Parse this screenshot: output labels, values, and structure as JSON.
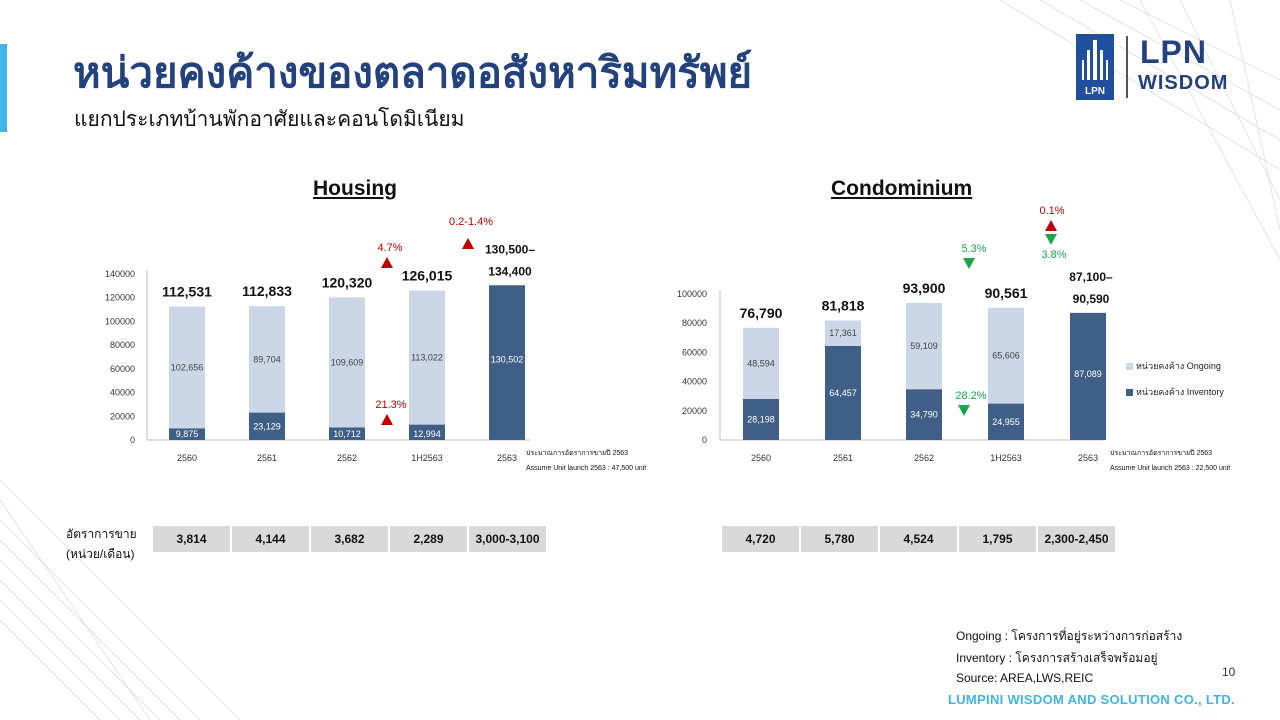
{
  "page": {
    "title": "หน่วยคงค้างของตลาดอสังหาริมทรัพย์",
    "subtitle": "แยกประเภทบ้านพักอาศัยและคอนโดมิเนียม",
    "logo_top": "LPN",
    "logo_bottom": "WISDOM",
    "logo_mark": "LPN",
    "page_number": "10",
    "company": "LUMPINI WISDOM AND SOLUTION CO., LTD.",
    "notes": [
      "Ongoing :  โครงการที่อยู่ระหว่างการก่อสร้าง",
      "Inventory : โครงการสร้างเสร็จพร้อมอยู่",
      "Source: AREA,LWS,REIC"
    ],
    "sales_label": [
      "อัตราการขาย",
      "(หน่วย/เดือน)"
    ],
    "colors": {
      "ongoing": "#cbd7e6",
      "inventory": "#3f5f86",
      "title": "#23417c",
      "up": "#c00000",
      "down": "#1aa64a",
      "accent": "#3fb4e6"
    }
  },
  "chart_data": [
    {
      "type": "bar",
      "stacked": true,
      "title": "Housing",
      "categories": [
        "2560",
        "2561",
        "2562",
        "1H2563",
        "2563"
      ],
      "yticks": [
        "0",
        "20000",
        "40000",
        "60000",
        "80000",
        "100000",
        "120000",
        "140000"
      ],
      "ylim": [
        0,
        140000
      ],
      "series": [
        {
          "name": "หน่วยคงค้าง Inventory",
          "values": [
            9875,
            23129,
            10712,
            12994,
            130502
          ],
          "labels": [
            "9,875",
            "23,129",
            "10,712",
            "12,994",
            "130,502"
          ]
        },
        {
          "name": "หน่วยคงค้าง Ongoing",
          "values": [
            102656,
            89704,
            109609,
            113022,
            null
          ],
          "labels": [
            "102,656",
            "89,704",
            "109,609",
            "113,022",
            ""
          ]
        }
      ],
      "totals": [
        "112,531",
        "112,833",
        "120,320",
        "126,015",
        "130,500–\n134,400"
      ],
      "annotations": [
        {
          "text": "4.7%",
          "direction": "up",
          "category": "2562",
          "role": "total"
        },
        {
          "text": "0.2-1.4%",
          "direction": "up",
          "category": "1H2563",
          "role": "total"
        },
        {
          "text": "21.3%",
          "direction": "up",
          "category": "2562",
          "role": "inventory"
        }
      ],
      "side_note": [
        "ประมาณการอัตราการขายปี 2563",
        "Assume Unit launch 2563 : 47,500 unit"
      ],
      "sales_rate": [
        "3,814",
        "4,144",
        "3,682",
        "2,289",
        "3,000-3,100"
      ]
    },
    {
      "type": "bar",
      "stacked": true,
      "title": "Condominium",
      "categories": [
        "2560",
        "2561",
        "2562",
        "1H2563",
        "2563"
      ],
      "yticks": [
        "0",
        "20000",
        "40000",
        "60000",
        "80000",
        "100000"
      ],
      "ylim": [
        0,
        100000
      ],
      "series": [
        {
          "name": "หน่วยคงค้าง Inventory",
          "values": [
            28198,
            64457,
            34790,
            24955,
            87089
          ],
          "labels": [
            "28,198",
            "64,457",
            "34,790",
            "24,955",
            "87,089"
          ]
        },
        {
          "name": "หน่วยคงค้าง Ongoing",
          "values": [
            48594,
            17361,
            59109,
            65606,
            null
          ],
          "labels": [
            "48,594",
            "17,361",
            "59,109",
            "65,606",
            ""
          ]
        }
      ],
      "totals": [
        "76,790",
        "81,818",
        "93,900",
        "90,561",
        "87,100–\n90,590"
      ],
      "annotations": [
        {
          "text": "5.3%",
          "direction": "down",
          "category": "2562",
          "role": "total"
        },
        {
          "text": "0.1%",
          "direction": "up",
          "category": "1H2563",
          "role": "total"
        },
        {
          "text": "3.8%",
          "direction": "down",
          "category": "1H2563",
          "role": "total"
        },
        {
          "text": "28.2%",
          "direction": "down",
          "category": "2562",
          "role": "inventory"
        }
      ],
      "legend": [
        "หน่วยคงค้าง Ongoing",
        "หน่วยคงค้าง Inventory"
      ],
      "legend_position": "right",
      "side_note": [
        "ประมาณการอัตราการขายปี 2563",
        "Assume Unit launch 2563 : 22,500 unit"
      ],
      "sales_rate": [
        "4,720",
        "5,780",
        "4,524",
        "1,795",
        "2,300-2,450"
      ]
    }
  ]
}
